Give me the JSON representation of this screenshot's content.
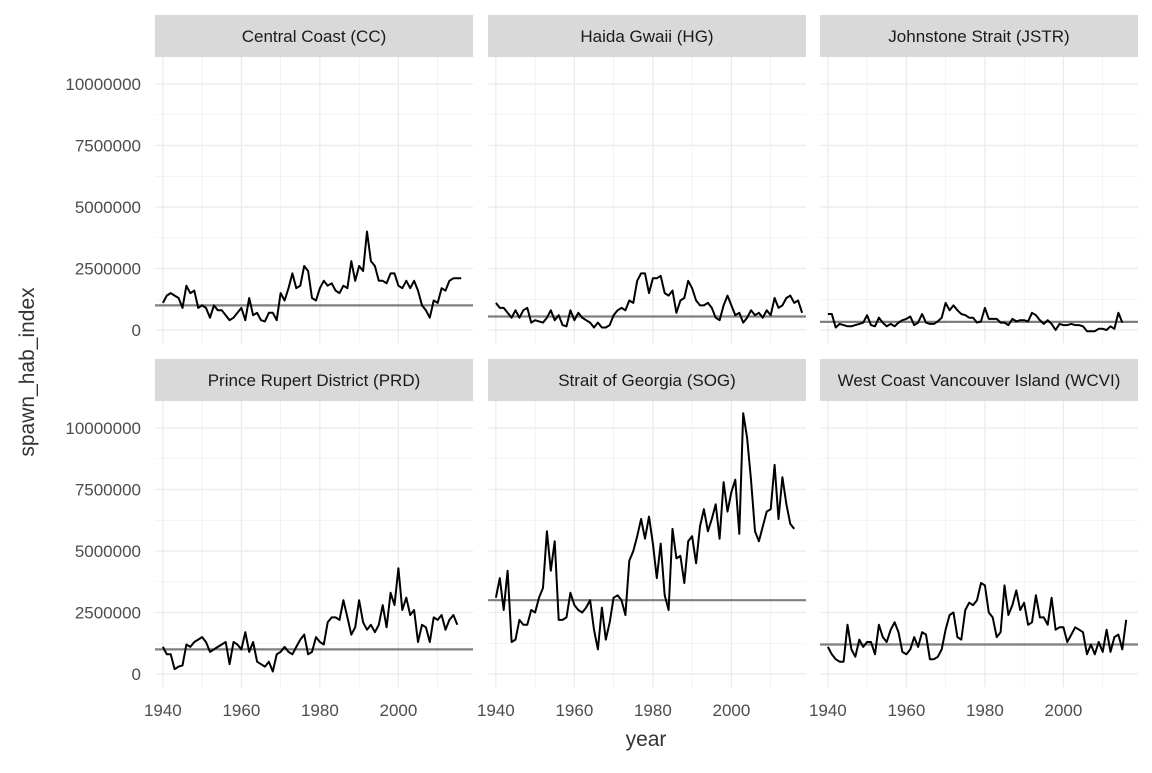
{
  "chart_data": {
    "type": "line",
    "facet": true,
    "xlabel": "year",
    "ylabel": "spawn_hab_index",
    "xlim": [
      1938,
      2019
    ],
    "ylim": [
      -300000,
      11100000
    ],
    "x_ticks": [
      1940,
      1960,
      1980,
      2000
    ],
    "x_tick_labels": [
      "1940",
      "1960",
      "1980",
      "2000"
    ],
    "y_ticks": [
      0,
      2500000,
      5000000,
      7500000,
      10000000
    ],
    "y_tick_labels": [
      "0",
      "2500000",
      "5000000",
      "7500000",
      "10000000"
    ],
    "grid": true,
    "colors": {
      "series": "#000000",
      "reference": "#7f7f7f",
      "strip": "#d9d9d9",
      "grid": "#ebebeb"
    },
    "panels": [
      {
        "strip": "Central Coast (CC)",
        "reference": 1000000,
        "x_start": 1940,
        "values": [
          1100000,
          1400000,
          1500000,
          1400000,
          1300000,
          900000,
          1800000,
          1500000,
          1600000,
          900000,
          1000000,
          900000,
          500000,
          1000000,
          800000,
          800000,
          600000,
          400000,
          500000,
          700000,
          900000,
          400000,
          1300000,
          600000,
          700000,
          400000,
          350000,
          700000,
          700000,
          400000,
          1500000,
          1200000,
          1700000,
          2300000,
          1700000,
          1800000,
          2600000,
          2400000,
          1300000,
          1200000,
          1700000,
          2000000,
          1800000,
          1900000,
          1600000,
          1500000,
          1800000,
          1700000,
          2800000,
          2000000,
          2600000,
          2400000,
          4000000,
          2800000,
          2600000,
          2000000,
          2000000,
          1900000,
          2300000,
          2300000,
          1800000,
          1700000,
          2000000,
          1700000,
          2000000,
          1600000,
          1000000,
          800000,
          500000,
          1200000,
          1100000,
          1700000,
          1600000,
          2000000,
          2100000,
          2100000,
          2100000
        ]
      },
      {
        "strip": "Haida Gwaii (HG)",
        "reference": 550000,
        "x_start": 1940,
        "values": [
          1100000,
          900000,
          900000,
          700000,
          500000,
          800000,
          500000,
          800000,
          900000,
          300000,
          400000,
          350000,
          300000,
          500000,
          800000,
          400000,
          600000,
          200000,
          150000,
          800000,
          400000,
          700000,
          500000,
          400000,
          300000,
          100000,
          300000,
          100000,
          100000,
          200000,
          600000,
          800000,
          900000,
          800000,
          1200000,
          1100000,
          2000000,
          2300000,
          2300000,
          1500000,
          2100000,
          2100000,
          2200000,
          1500000,
          1400000,
          1600000,
          700000,
          1200000,
          1300000,
          2000000,
          1700000,
          1200000,
          1000000,
          1000000,
          1100000,
          900000,
          500000,
          400000,
          1000000,
          1400000,
          1000000,
          600000,
          700000,
          300000,
          500000,
          800000,
          600000,
          700000,
          500000,
          800000,
          600000,
          1300000,
          900000,
          1000000,
          1300000,
          1400000,
          1100000,
          1200000,
          700000
        ]
      },
      {
        "strip": "Johnstone Strait (JSTR)",
        "reference": 330000,
        "x_start": 1940,
        "values": [
          650000,
          650000,
          100000,
          250000,
          200000,
          150000,
          150000,
          200000,
          250000,
          300000,
          600000,
          200000,
          150000,
          500000,
          300000,
          150000,
          250000,
          150000,
          300000,
          400000,
          450000,
          550000,
          200000,
          300000,
          650000,
          300000,
          250000,
          250000,
          350000,
          500000,
          1100000,
          800000,
          1000000,
          800000,
          650000,
          600000,
          500000,
          500000,
          300000,
          350000,
          900000,
          450000,
          450000,
          450000,
          300000,
          300000,
          200000,
          450000,
          350000,
          400000,
          400000,
          350000,
          700000,
          600000,
          400000,
          250000,
          400000,
          250000,
          0,
          250000,
          200000,
          200000,
          250000,
          200000,
          200000,
          150000,
          -50000,
          -50000,
          -50000,
          50000,
          50000,
          0,
          150000,
          50000,
          700000,
          300000
        ]
      },
      {
        "strip": "Prince Rupert District (PRD)",
        "reference": 1000000,
        "x_start": 1940,
        "values": [
          1100000,
          800000,
          800000,
          200000,
          300000,
          350000,
          1200000,
          1100000,
          1300000,
          1400000,
          1500000,
          1300000,
          900000,
          1000000,
          1100000,
          1200000,
          1300000,
          400000,
          1300000,
          1200000,
          1000000,
          1700000,
          900000,
          1300000,
          500000,
          400000,
          300000,
          500000,
          100000,
          800000,
          900000,
          1100000,
          900000,
          800000,
          1100000,
          1400000,
          1600000,
          800000,
          900000,
          1500000,
          1300000,
          1200000,
          2100000,
          2300000,
          2300000,
          2200000,
          3000000,
          2300000,
          1600000,
          1900000,
          3000000,
          2100000,
          1800000,
          2000000,
          1700000,
          2000000,
          2800000,
          1900000,
          3300000,
          2800000,
          4300000,
          2600000,
          3100000,
          2400000,
          2600000,
          1300000,
          2000000,
          1900000,
          1300000,
          2300000,
          2200000,
          2400000,
          1800000,
          2200000,
          2400000,
          2000000
        ]
      },
      {
        "strip": "Strait of Georgia (SOG)",
        "reference": 3000000,
        "x_start": 1940,
        "values": [
          3100000,
          3900000,
          2600000,
          4200000,
          1300000,
          1400000,
          2200000,
          2000000,
          2000000,
          2600000,
          2500000,
          3100000,
          3500000,
          5800000,
          4200000,
          5400000,
          2200000,
          2200000,
          2300000,
          3300000,
          2800000,
          2600000,
          2500000,
          2700000,
          3000000,
          1800000,
          1000000,
          2700000,
          1400000,
          2100000,
          3100000,
          3200000,
          3000000,
          2400000,
          4600000,
          5000000,
          5600000,
          6300000,
          5500000,
          6400000,
          5300000,
          3900000,
          5300000,
          3200000,
          2600000,
          5900000,
          4700000,
          4800000,
          3700000,
          5400000,
          5600000,
          4500000,
          6000000,
          6700000,
          5800000,
          6300000,
          6900000,
          5500000,
          7800000,
          6600000,
          7400000,
          7900000,
          5700000,
          10600000,
          9600000,
          7900000,
          5800000,
          5400000,
          6000000,
          6600000,
          6700000,
          8500000,
          6300000,
          8000000,
          6900000,
          6100000,
          5900000
        ]
      },
      {
        "strip": "West Coast Vancouver Island (WCVI)",
        "reference": 1200000,
        "x_start": 1940,
        "values": [
          1100000,
          800000,
          600000,
          500000,
          500000,
          2000000,
          1000000,
          700000,
          1400000,
          1100000,
          1300000,
          1300000,
          800000,
          2000000,
          1500000,
          1300000,
          1800000,
          2100000,
          1700000,
          900000,
          800000,
          1000000,
          1500000,
          1100000,
          1700000,
          1600000,
          600000,
          600000,
          700000,
          1000000,
          1800000,
          2400000,
          2500000,
          1500000,
          1400000,
          2600000,
          2900000,
          2800000,
          3000000,
          3700000,
          3600000,
          2500000,
          2300000,
          1500000,
          1700000,
          3600000,
          2400000,
          2800000,
          3400000,
          2600000,
          2900000,
          2000000,
          2100000,
          3200000,
          2300000,
          2300000,
          2000000,
          3100000,
          1800000,
          1900000,
          1900000,
          1300000,
          1600000,
          1900000,
          1800000,
          1700000,
          800000,
          1200000,
          800000,
          1300000,
          900000,
          1800000,
          900000,
          1500000,
          1600000,
          1000000,
          2200000
        ]
      }
    ]
  }
}
